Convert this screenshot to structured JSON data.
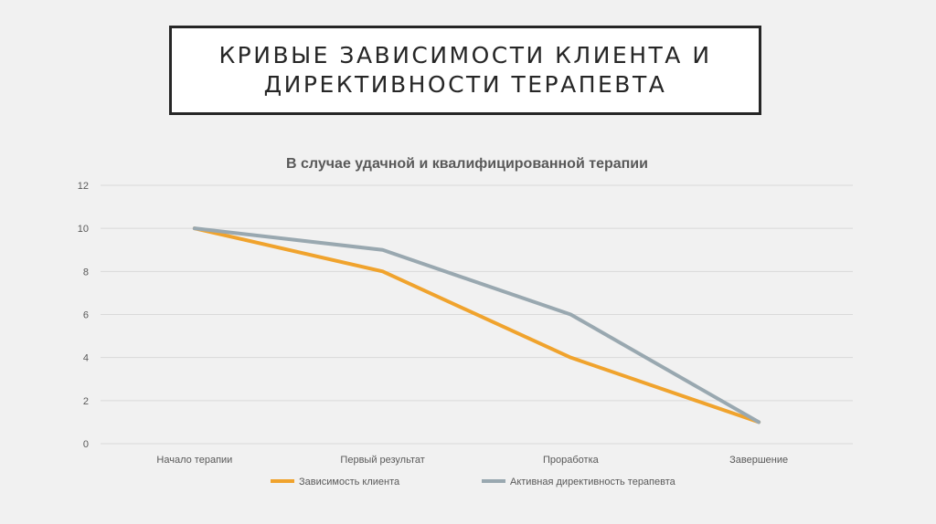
{
  "slide": {
    "title": "КРИВЫЕ ЗАВИСИМОСТИ КЛИЕНТА И ДИРЕКТИВНОСТИ ТЕРАПЕВТА"
  },
  "chart_data": {
    "type": "line",
    "title": "В случае удачной и квалифицированной терапии",
    "categories": [
      "Начало терапии",
      "Первый результат",
      "Проработка",
      "Завершение"
    ],
    "yticks": [
      "0",
      "2",
      "4",
      "6",
      "8",
      "10",
      "12"
    ],
    "ylim": [
      0,
      12
    ],
    "grid": true,
    "legend_position": "bottom",
    "series": [
      {
        "name": "Зависимость клиента",
        "values": [
          10,
          8,
          4,
          1
        ],
        "color": "#f0a32d"
      },
      {
        "name": "Активная директивность терапевта",
        "values": [
          10,
          9,
          6,
          1
        ],
        "color": "#99a8b0"
      }
    ],
    "colors": {
      "gridline": "#d9d9d9",
      "text": "#595959"
    }
  }
}
